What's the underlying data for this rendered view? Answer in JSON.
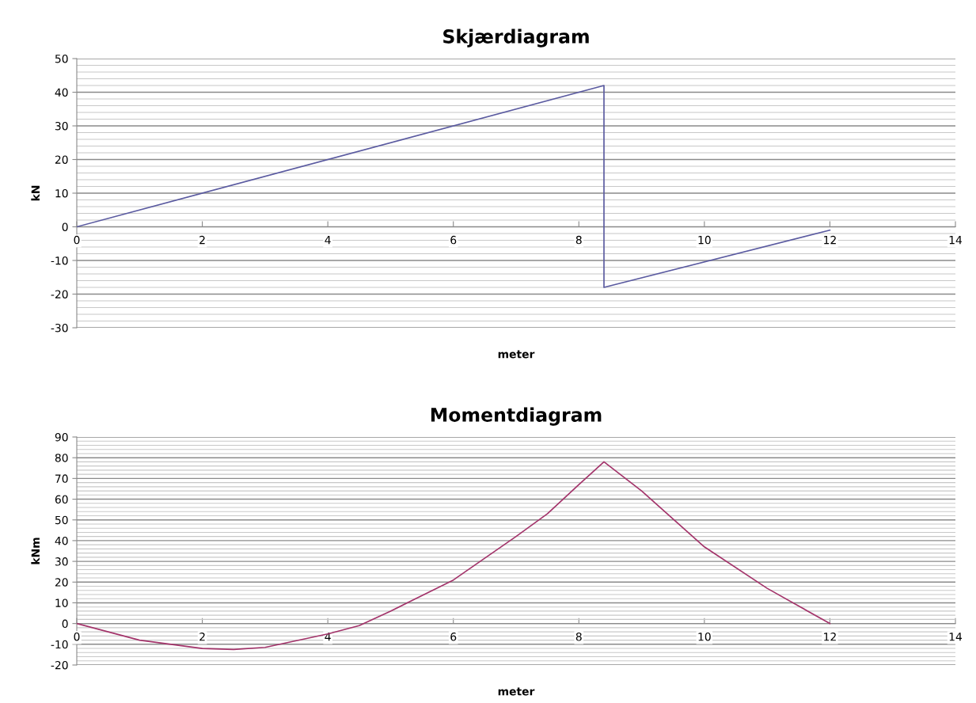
{
  "chart_data": [
    {
      "type": "line",
      "title": "Skjærdiagram",
      "xlabel": "meter",
      "ylabel": "kN",
      "xlim": [
        0,
        14
      ],
      "xticks": [
        0,
        2,
        4,
        6,
        8,
        10,
        12,
        14
      ],
      "ylim": [
        -30,
        50
      ],
      "yticks": [
        -30,
        -20,
        -10,
        0,
        10,
        20,
        30,
        40,
        50
      ],
      "grid": "y",
      "marker": "none",
      "line_style": "solid",
      "series": [
        {
          "color": "#5a5aa0",
          "x": [
            0,
            8.4,
            8.4,
            12
          ],
          "values": [
            0,
            42,
            -18,
            -1
          ]
        }
      ]
    },
    {
      "type": "line",
      "title": "Momentdiagram",
      "xlabel": "meter",
      "ylabel": "kNm",
      "xlim": [
        0,
        14
      ],
      "xticks": [
        0,
        2,
        4,
        6,
        8,
        10,
        12,
        14
      ],
      "ylim": [
        -20,
        90
      ],
      "yticks": [
        -20,
        -10,
        0,
        10,
        20,
        30,
        40,
        50,
        60,
        70,
        80,
        90
      ],
      "grid": "y",
      "marker": "none",
      "line_style": "solid",
      "series": [
        {
          "color": "#a3336a",
          "x": [
            0,
            1,
            2,
            2.5,
            3,
            4,
            4.5,
            5,
            6,
            7,
            7.5,
            8,
            8.4,
            9,
            10,
            11,
            12
          ],
          "values": [
            0,
            -8,
            -12,
            -12.5,
            -11.5,
            -5,
            -1,
            6,
            21,
            42,
            53,
            67,
            78,
            64,
            37,
            17,
            0
          ]
        }
      ]
    }
  ]
}
